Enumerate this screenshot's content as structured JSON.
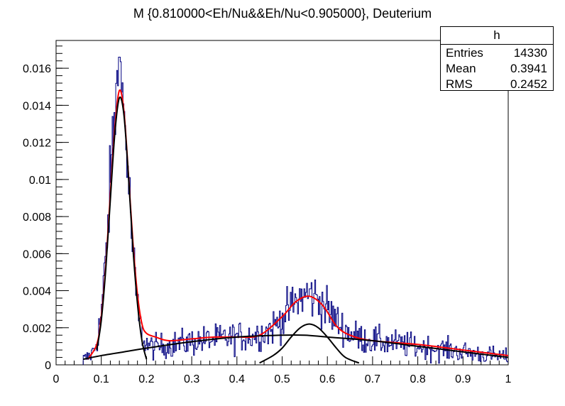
{
  "chart_data": {
    "type": "line",
    "title": "M {0.810000<Eh/Nu&&Eh/Nu<0.905000}, Deuterium",
    "xlabel": "",
    "ylabel": "",
    "xlim": [
      0,
      1
    ],
    "ylim": [
      0,
      0.0175
    ],
    "x_ticks": [
      "0",
      "0.1",
      "0.2",
      "0.3",
      "0.4",
      "0.5",
      "0.6",
      "0.7",
      "0.8",
      "0.9",
      "1"
    ],
    "y_ticks": [
      "0",
      "0.002",
      "0.004",
      "0.006",
      "0.008",
      "0.01",
      "0.012",
      "0.014",
      "0.016"
    ],
    "grid": false,
    "histogram": {
      "name": "h",
      "color": "#000080",
      "bin_width": 0.002,
      "x_range": [
        0.06,
        1.0
      ],
      "peak_1": {
        "mean": 0.14,
        "sigma": 0.021,
        "height": 0.0146
      },
      "peak_2": {
        "mean": 0.56,
        "sigma": 0.045,
        "height": 0.0022
      },
      "max_bin": 0.0166
    },
    "series": [
      {
        "color": "#ff0000",
        "x": [
          0.07,
          0.09,
          0.1,
          0.11,
          0.12,
          0.13,
          0.14,
          0.15,
          0.16,
          0.17,
          0.18,
          0.19,
          0.2,
          0.22,
          0.25,
          0.3,
          0.35,
          0.4,
          0.45,
          0.5,
          0.53,
          0.56,
          0.59,
          0.62,
          0.65,
          0.7,
          0.8,
          0.9,
          1.0
        ],
        "y": [
          0.0003,
          0.0011,
          0.0026,
          0.0054,
          0.0092,
          0.0128,
          0.0148,
          0.0137,
          0.0103,
          0.0066,
          0.0038,
          0.0022,
          0.0017,
          0.0015,
          0.0013,
          0.0014,
          0.0015,
          0.0015,
          0.0016,
          0.0026,
          0.0034,
          0.0037,
          0.0032,
          0.0021,
          0.0016,
          0.0013,
          0.0011,
          0.0008,
          0.0005
        ]
      },
      {
        "color": "#000000",
        "x": [
          0.09,
          0.1,
          0.11,
          0.12,
          0.13,
          0.14,
          0.15,
          0.16,
          0.17,
          0.18,
          0.19,
          0.2
        ],
        "y": [
          0.0008,
          0.0024,
          0.0052,
          0.0089,
          0.0125,
          0.0144,
          0.0135,
          0.0102,
          0.0063,
          0.0033,
          0.0013,
          0.0003
        ]
      },
      {
        "color": "#000000",
        "x": [
          0.06,
          0.1,
          0.15,
          0.2,
          0.3,
          0.4,
          0.5,
          0.55,
          0.6,
          0.7,
          0.8,
          0.9,
          1.0
        ],
        "y": [
          0.0003,
          0.0005,
          0.0007,
          0.0009,
          0.00125,
          0.0015,
          0.0016,
          0.0016,
          0.0015,
          0.0013,
          0.001,
          0.0007,
          0.0004
        ]
      },
      {
        "color": "#000000",
        "x": [
          0.45,
          0.48,
          0.5,
          0.52,
          0.54,
          0.56,
          0.58,
          0.6,
          0.62,
          0.64,
          0.67
        ],
        "y": [
          0.0001,
          0.0005,
          0.0009,
          0.0015,
          0.002,
          0.0022,
          0.002,
          0.0015,
          0.0009,
          0.0004,
          0.0001
        ]
      }
    ]
  },
  "stats_box": {
    "title": "h",
    "rows": [
      {
        "label": "Entries",
        "value": "14330"
      },
      {
        "label": "Mean",
        "value": "0.3941"
      },
      {
        "label": "RMS",
        "value": "0.2452"
      }
    ]
  }
}
